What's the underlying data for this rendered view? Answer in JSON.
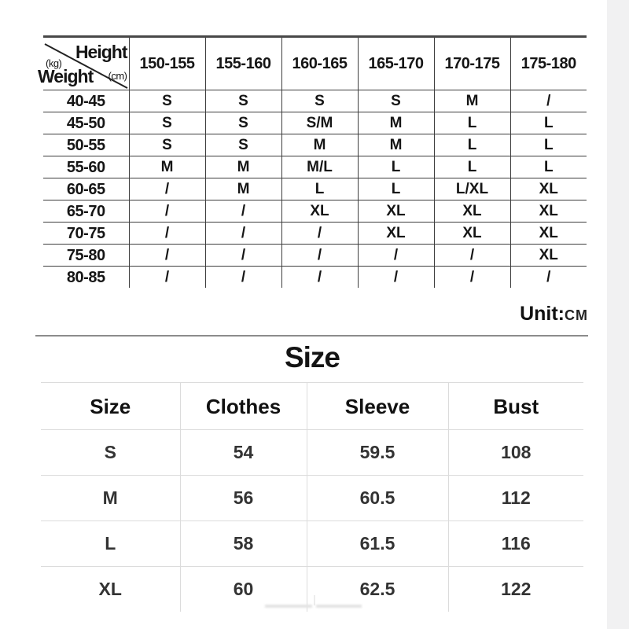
{
  "unit_note": {
    "label": "Unit:",
    "value": "CM"
  },
  "section_title": "Size",
  "size_guide_table": {
    "corner": {
      "top_label": "Height",
      "top_unit": "(cm)",
      "bottom_label": "Weight",
      "bottom_unit": "(kg)"
    },
    "height_columns": [
      "150-155",
      "155-160",
      "160-165",
      "165-170",
      "170-175",
      "175-180"
    ],
    "rows": [
      {
        "weight": "40-45",
        "values": [
          "S",
          "S",
          "S",
          "S",
          "M",
          "/"
        ]
      },
      {
        "weight": "45-50",
        "values": [
          "S",
          "S",
          "S/M",
          "M",
          "L",
          "L"
        ]
      },
      {
        "weight": "50-55",
        "values": [
          "S",
          "S",
          "M",
          "M",
          "L",
          "L"
        ]
      },
      {
        "weight": "55-60",
        "values": [
          "M",
          "M",
          "M/L",
          "L",
          "L",
          "L"
        ]
      },
      {
        "weight": "60-65",
        "values": [
          "/",
          "M",
          "L",
          "L",
          "L/XL",
          "XL"
        ]
      },
      {
        "weight": "65-70",
        "values": [
          "/",
          "/",
          "XL",
          "XL",
          "XL",
          "XL"
        ]
      },
      {
        "weight": "70-75",
        "values": [
          "/",
          "/",
          "/",
          "XL",
          "XL",
          "XL"
        ]
      },
      {
        "weight": "75-80",
        "values": [
          "/",
          "/",
          "/",
          "/",
          "/",
          "XL"
        ]
      },
      {
        "weight": "80-85",
        "values": [
          "/",
          "/",
          "/",
          "/",
          "/",
          "/"
        ]
      }
    ]
  },
  "measurements_table": {
    "headers": [
      "Size",
      "Clothes",
      "Sleeve",
      "Bust"
    ],
    "rows": [
      {
        "size": "S",
        "clothes": "54",
        "sleeve": "59.5",
        "bust": "108"
      },
      {
        "size": "M",
        "clothes": "56",
        "sleeve": "60.5",
        "bust": "112"
      },
      {
        "size": "L",
        "clothes": "58",
        "sleeve": "61.5",
        "bust": "116"
      },
      {
        "size": "XL",
        "clothes": "60",
        "sleeve": "62.5",
        "bust": "122"
      }
    ]
  },
  "colors": {
    "page_bg": "#ffffff",
    "side_strip": "#f1f1f2",
    "text_primary": "#151515",
    "text_secondary": "#333333",
    "grid_dark": "#3d3d3d",
    "grid_light": "#dcdcdc",
    "top_border": "#484848",
    "separator": "#8c8c8c"
  }
}
